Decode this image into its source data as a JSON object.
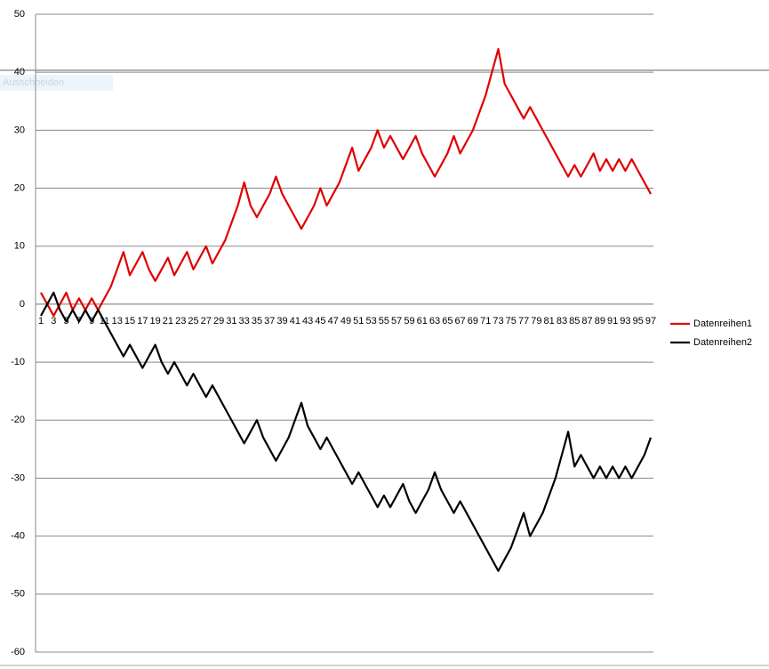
{
  "chart_data": {
    "type": "line",
    "categories": [
      "1",
      null,
      "3",
      null,
      "5",
      null,
      "7",
      null,
      "9",
      null,
      "11",
      null,
      "13",
      null,
      "15",
      null,
      "17",
      null,
      "19",
      null,
      "21",
      null,
      "23",
      null,
      "25",
      null,
      "27",
      null,
      "29",
      null,
      "31",
      null,
      "33",
      null,
      "35",
      null,
      "37",
      null,
      "39",
      null,
      "41",
      null,
      "43",
      null,
      "45",
      null,
      "47",
      null,
      "49",
      null,
      "51",
      null,
      "53",
      null,
      "55",
      null,
      "57",
      null,
      "59",
      null,
      "61",
      null,
      "63",
      null,
      "65",
      null,
      "67",
      null,
      "69",
      null,
      "71",
      null,
      "73",
      null,
      "75",
      null,
      "77",
      null,
      "79",
      null,
      "81",
      null,
      "83",
      null,
      "85",
      null,
      "87",
      null,
      "89",
      null,
      "91",
      null,
      "93",
      null,
      "95",
      null,
      "97"
    ],
    "series": [
      {
        "name": "Datenreihen1",
        "color": "#e00000",
        "values": [
          2,
          0,
          -2,
          0,
          2,
          -1,
          1,
          -1,
          1,
          -1,
          1,
          3,
          6,
          9,
          5,
          7,
          9,
          6,
          4,
          6,
          8,
          5,
          7,
          9,
          6,
          8,
          10,
          7,
          9,
          11,
          14,
          17,
          21,
          17,
          15,
          17,
          19,
          22,
          19,
          17,
          15,
          13,
          15,
          17,
          20,
          17,
          19,
          21,
          24,
          27,
          23,
          25,
          27,
          30,
          27,
          29,
          27,
          25,
          27,
          29,
          26,
          24,
          22,
          24,
          26,
          29,
          26,
          28,
          30,
          33,
          36,
          40,
          44,
          38,
          36,
          34,
          32,
          34,
          32,
          30,
          28,
          26,
          24,
          22,
          24,
          22,
          24,
          26,
          23,
          25,
          23,
          25,
          23,
          25,
          23,
          21,
          19
        ]
      },
      {
        "name": "Datenreihen2",
        "color": "#000000",
        "values": [
          -2,
          0,
          2,
          -1,
          -3,
          -1,
          -3,
          -1,
          -3,
          -1,
          -3,
          -5,
          -7,
          -9,
          -7,
          -9,
          -11,
          -9,
          -7,
          -10,
          -12,
          -10,
          -12,
          -14,
          -12,
          -14,
          -16,
          -14,
          -16,
          -18,
          -20,
          -22,
          -24,
          -22,
          -20,
          -23,
          -25,
          -27,
          -25,
          -23,
          -20,
          -17,
          -21,
          -23,
          -25,
          -23,
          -25,
          -27,
          -29,
          -31,
          -29,
          -31,
          -33,
          -35,
          -33,
          -35,
          -33,
          -31,
          -34,
          -36,
          -34,
          -32,
          -29,
          -32,
          -34,
          -36,
          -34,
          -36,
          -38,
          -40,
          -42,
          -44,
          -46,
          -44,
          -42,
          -39,
          -36,
          -40,
          -38,
          -36,
          -33,
          -30,
          -26,
          -22,
          -28,
          -26,
          -28,
          -30,
          -28,
          -30,
          -28,
          -30,
          -28,
          -30,
          -28,
          -26,
          -23
        ]
      }
    ],
    "ylim": [
      -60,
      50
    ],
    "yticks": [
      -60,
      -50,
      -40,
      -30,
      -20,
      -10,
      0,
      10,
      20,
      30,
      40,
      50
    ],
    "grid": true,
    "legend": "right"
  },
  "ui": {
    "ghost_text": "Ausschneiden"
  }
}
